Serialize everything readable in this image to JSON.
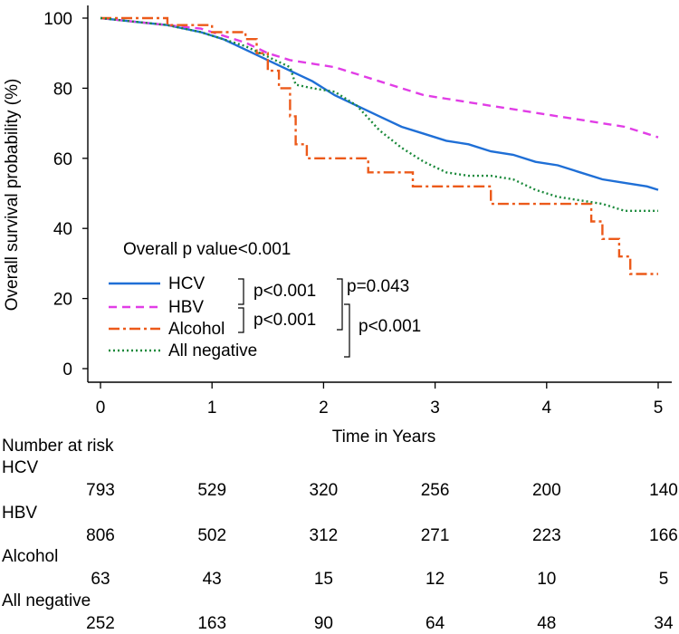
{
  "chart_data": {
    "type": "line",
    "title": "",
    "xlabel": "Time in Years",
    "ylabel": "Overall survival probability (%)",
    "xlim": [
      0,
      5
    ],
    "ylim": [
      0,
      100
    ],
    "xticks": [
      0,
      1,
      2,
      3,
      4,
      5
    ],
    "yticks": [
      0,
      20,
      40,
      60,
      80,
      100
    ],
    "annotation": "Overall p value<0.001",
    "comparisons": [
      {
        "label": "p<0.001",
        "groups": [
          "HCV",
          "HBV"
        ]
      },
      {
        "label": "p<0.001",
        "groups": [
          "HBV",
          "Alcohol"
        ]
      },
      {
        "label": "p=0.043",
        "groups": [
          "HCV",
          "HBV"
        ]
      },
      {
        "label": "p<0.001",
        "groups": [
          "HBV",
          "All negative"
        ]
      }
    ],
    "series": [
      {
        "name": "HCV",
        "color": "#1f6fd6",
        "dash": "",
        "points": [
          [
            0,
            100
          ],
          [
            0.3,
            99
          ],
          [
            0.6,
            98
          ],
          [
            0.9,
            96
          ],
          [
            1.1,
            94
          ],
          [
            1.3,
            91
          ],
          [
            1.5,
            88
          ],
          [
            1.7,
            85
          ],
          [
            1.9,
            82
          ],
          [
            2.1,
            78
          ],
          [
            2.3,
            75
          ],
          [
            2.5,
            72
          ],
          [
            2.7,
            69
          ],
          [
            2.9,
            67
          ],
          [
            3.1,
            65
          ],
          [
            3.3,
            64
          ],
          [
            3.5,
            62
          ],
          [
            3.7,
            61
          ],
          [
            3.9,
            59
          ],
          [
            4.1,
            58
          ],
          [
            4.3,
            56
          ],
          [
            4.5,
            54
          ],
          [
            4.7,
            53
          ],
          [
            4.9,
            52
          ],
          [
            5.0,
            51
          ]
        ]
      },
      {
        "name": "HBV",
        "color": "#e13de6",
        "dash": "9,6",
        "points": [
          [
            0,
            100
          ],
          [
            0.3,
            99
          ],
          [
            0.6,
            98
          ],
          [
            0.9,
            97
          ],
          [
            1.1,
            95
          ],
          [
            1.3,
            93
          ],
          [
            1.5,
            90
          ],
          [
            1.7,
            88
          ],
          [
            1.9,
            87
          ],
          [
            2.1,
            86
          ],
          [
            2.3,
            84
          ],
          [
            2.5,
            82
          ],
          [
            2.7,
            80
          ],
          [
            2.9,
            78
          ],
          [
            3.1,
            77
          ],
          [
            3.3,
            76
          ],
          [
            3.5,
            75
          ],
          [
            3.7,
            74
          ],
          [
            3.9,
            73
          ],
          [
            4.1,
            72
          ],
          [
            4.3,
            71
          ],
          [
            4.5,
            70
          ],
          [
            4.7,
            69
          ],
          [
            4.9,
            67
          ],
          [
            5.0,
            66
          ]
        ]
      },
      {
        "name": "Alcohol",
        "color": "#ec5a1a",
        "dash": "12,4,3,4",
        "points": [
          [
            0,
            100
          ],
          [
            0.6,
            100
          ],
          [
            0.6,
            98
          ],
          [
            1.0,
            98
          ],
          [
            1.0,
            96
          ],
          [
            1.3,
            96
          ],
          [
            1.3,
            94
          ],
          [
            1.4,
            94
          ],
          [
            1.4,
            90
          ],
          [
            1.5,
            90
          ],
          [
            1.5,
            85
          ],
          [
            1.6,
            85
          ],
          [
            1.6,
            80
          ],
          [
            1.7,
            80
          ],
          [
            1.7,
            72
          ],
          [
            1.75,
            72
          ],
          [
            1.75,
            64
          ],
          [
            1.85,
            64
          ],
          [
            1.85,
            60
          ],
          [
            2.4,
            60
          ],
          [
            2.4,
            56
          ],
          [
            2.8,
            56
          ],
          [
            2.8,
            52
          ],
          [
            3.5,
            52
          ],
          [
            3.5,
            47
          ],
          [
            4.4,
            47
          ],
          [
            4.4,
            42
          ],
          [
            4.5,
            42
          ],
          [
            4.5,
            37
          ],
          [
            4.65,
            37
          ],
          [
            4.65,
            32
          ],
          [
            4.75,
            32
          ],
          [
            4.75,
            27
          ],
          [
            5.0,
            27
          ]
        ]
      },
      {
        "name": "All negative",
        "color": "#1c8a3c",
        "dash": "2,3",
        "points": [
          [
            0,
            100
          ],
          [
            0.3,
            99
          ],
          [
            0.6,
            98
          ],
          [
            0.9,
            96
          ],
          [
            1.1,
            94
          ],
          [
            1.3,
            92
          ],
          [
            1.5,
            89
          ],
          [
            1.7,
            86
          ],
          [
            1.75,
            81
          ],
          [
            1.9,
            80
          ],
          [
            2.1,
            79
          ],
          [
            2.3,
            75
          ],
          [
            2.5,
            68
          ],
          [
            2.7,
            63
          ],
          [
            2.9,
            59
          ],
          [
            3.1,
            56
          ],
          [
            3.3,
            55
          ],
          [
            3.5,
            55
          ],
          [
            3.7,
            54
          ],
          [
            3.9,
            51
          ],
          [
            4.1,
            49
          ],
          [
            4.3,
            48
          ],
          [
            4.5,
            47
          ],
          [
            4.7,
            45
          ],
          [
            5.0,
            45
          ]
        ]
      }
    ],
    "risk_table": {
      "title": "Number at risk",
      "times": [
        0,
        1,
        2,
        3,
        4,
        5
      ],
      "rows": [
        {
          "name": "HCV",
          "values": [
            "793",
            "529",
            "320",
            "256",
            "200",
            "140"
          ]
        },
        {
          "name": "HBV",
          "values": [
            "806",
            "502",
            "312",
            "271",
            "223",
            "166"
          ]
        },
        {
          "name": "Alcohol",
          "values": [
            "63",
            "43",
            "15",
            "12",
            "10",
            "5"
          ]
        },
        {
          "name": "All negative",
          "values": [
            "252",
            "163",
            "90",
            "64",
            "48",
            "34"
          ]
        }
      ]
    }
  }
}
